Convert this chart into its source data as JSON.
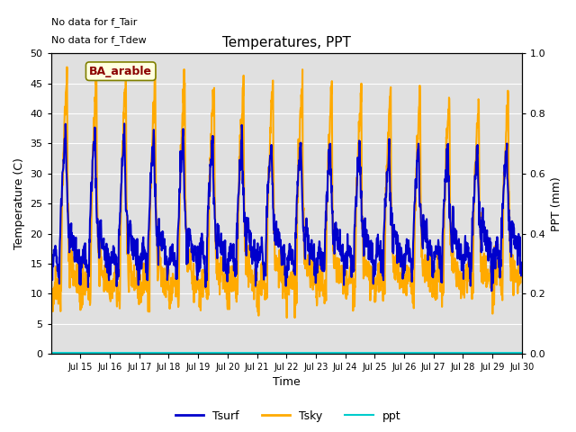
{
  "title": "Temperatures, PPT",
  "xlabel": "Time",
  "ylabel_left": "Temperature (C)",
  "ylabel_right": "PPT (mm)",
  "text_no_data": [
    "No data for f_Tair",
    "No data for f_Tdew"
  ],
  "legend_label": "BA_arable",
  "xlim": [
    14.0,
    30.0
  ],
  "ylim_left": [
    0,
    50
  ],
  "ylim_right": [
    0.0,
    1.0
  ],
  "yticks_left": [
    0,
    5,
    10,
    15,
    20,
    25,
    30,
    35,
    40,
    45,
    50
  ],
  "yticks_right": [
    0.0,
    0.2,
    0.4,
    0.6,
    0.8,
    1.0
  ],
  "xtick_labels": [
    "Jul 15",
    "Jul 16",
    "Jul 17",
    "Jul 18",
    "Jul 19",
    "Jul 20",
    "Jul 21",
    "Jul 22",
    "Jul 23",
    "Jul 24",
    "Jul 25",
    "Jul 26",
    "Jul 27",
    "Jul 28",
    "Jul 29",
    "Jul 30"
  ],
  "xtick_positions": [
    15,
    16,
    17,
    18,
    19,
    20,
    21,
    22,
    23,
    24,
    25,
    26,
    27,
    28,
    29,
    30
  ],
  "color_tsurf": "#0000cc",
  "color_tsky": "#ffaa00",
  "color_ppt": "#00cccc",
  "bg_color": "#e0e0e0",
  "grid_color": "#c8c8c8",
  "tsurf_lw": 1.5,
  "tsky_lw": 1.5,
  "ppt_lw": 1.5,
  "figsize": [
    6.4,
    4.8
  ],
  "dpi": 100
}
